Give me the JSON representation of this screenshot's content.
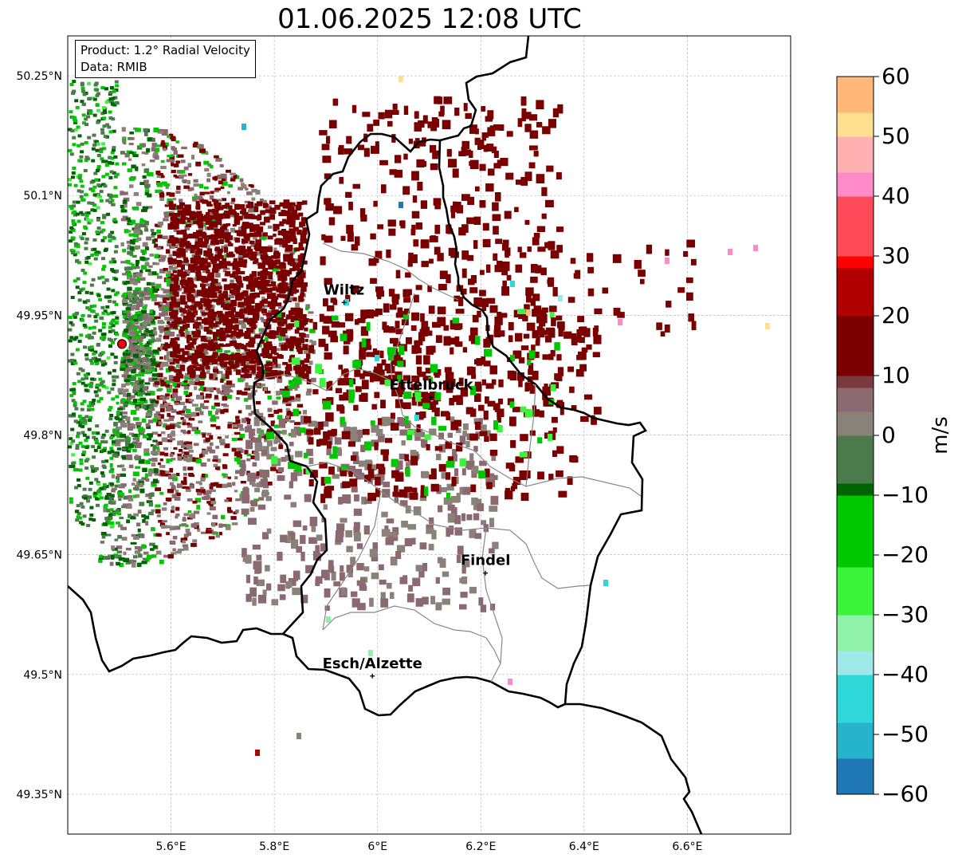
{
  "title": "01.06.2025 12:08 UTC",
  "info_box": {
    "product": "Product: 1.2° Radial Velocity",
    "data_source": "Data: RMIB"
  },
  "map": {
    "lon_range": [
      5.4,
      6.8
    ],
    "lat_range": [
      49.3,
      50.3
    ],
    "lon_ticks": [
      {
        "value": 5.6,
        "label": "5.6°E"
      },
      {
        "value": 5.8,
        "label": "5.8°E"
      },
      {
        "value": 6.0,
        "label": "6°E"
      },
      {
        "value": 6.2,
        "label": "6.2°E"
      },
      {
        "value": 6.4,
        "label": "6.4°E"
      },
      {
        "value": 6.6,
        "label": "6.6°E"
      }
    ],
    "lat_ticks": [
      {
        "value": 50.25,
        "label": "50.25°N"
      },
      {
        "value": 50.1,
        "label": "50.1°N"
      },
      {
        "value": 49.95,
        "label": "49.95°N"
      },
      {
        "value": 49.8,
        "label": "49.8°N"
      },
      {
        "value": 49.65,
        "label": "49.65°N"
      },
      {
        "value": 49.5,
        "label": "49.5°N"
      },
      {
        "value": 49.35,
        "label": "49.35°N"
      }
    ],
    "radar_site": {
      "lon": 5.505,
      "lat": 49.914
    },
    "cities": [
      {
        "name": "Wiltz",
        "lon": 5.935,
        "lat": 49.966
      },
      {
        "name": "Ettelbruck",
        "lon": 6.104,
        "lat": 49.847
      },
      {
        "name": "Findel",
        "lon": 6.209,
        "lat": 49.627
      },
      {
        "name": "Esch/Alzette",
        "lon": 5.99,
        "lat": 49.498
      }
    ],
    "grid": true
  },
  "colorbar": {
    "label": "m/s",
    "min": -60,
    "max": 60,
    "ticks": [
      {
        "value": 60,
        "label": "60"
      },
      {
        "value": 50,
        "label": "50"
      },
      {
        "value": 40,
        "label": "40"
      },
      {
        "value": 30,
        "label": "30"
      },
      {
        "value": 20,
        "label": "20"
      },
      {
        "value": 10,
        "label": "10"
      },
      {
        "value": 0,
        "label": "0"
      },
      {
        "value": -10,
        "label": "−10"
      },
      {
        "value": -20,
        "label": "−20"
      },
      {
        "value": -30,
        "label": "−30"
      },
      {
        "value": -40,
        "label": "−40"
      },
      {
        "value": -50,
        "label": "−50"
      },
      {
        "value": -60,
        "label": "−60"
      }
    ],
    "stops": [
      {
        "v": -60,
        "color": "#1f77b4"
      },
      {
        "v": -54,
        "color": "#26b3cc"
      },
      {
        "v": -48,
        "color": "#2ed8d8"
      },
      {
        "v": -40,
        "color": "#9ee8e8"
      },
      {
        "v": -36,
        "color": "#b6f0f0"
      },
      {
        "v": -35,
        "color": "#8ff2a8"
      },
      {
        "v": -30,
        "color": "#3af53a"
      },
      {
        "v": -22,
        "color": "#00c800"
      },
      {
        "v": -10,
        "color": "#006400"
      },
      {
        "v": -8,
        "color": "#4b7a4b"
      },
      {
        "v": 0,
        "color": "#8a8278"
      },
      {
        "v": 4,
        "color": "#8a6a70"
      },
      {
        "v": 8,
        "color": "#7a3a40"
      },
      {
        "v": 10,
        "color": "#7a0000"
      },
      {
        "v": 20,
        "color": "#b00000"
      },
      {
        "v": 28,
        "color": "#ff0000"
      },
      {
        "v": 30,
        "color": "#ff4a5a"
      },
      {
        "v": 40,
        "color": "#ff8ac8"
      },
      {
        "v": 45,
        "color": "#ffb0b0"
      },
      {
        "v": 50,
        "color": "#ffe090"
      },
      {
        "v": 55,
        "color": "#ffb878"
      },
      {
        "v": 60,
        "color": "#ff9850"
      }
    ]
  }
}
